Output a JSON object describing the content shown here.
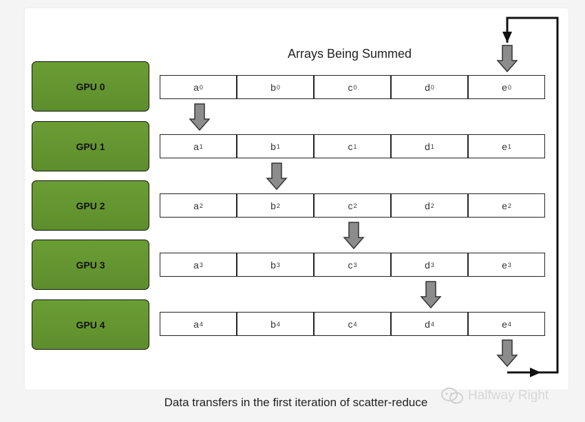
{
  "diagram": {
    "title": "Arrays Being Summed",
    "gpus": [
      "GPU 0",
      "GPU 1",
      "GPU 2",
      "GPU 3",
      "GPU 4"
    ],
    "rows": [
      [
        [
          "a",
          "0"
        ],
        [
          "b",
          "0"
        ],
        [
          "c",
          "0"
        ],
        [
          "d",
          "0"
        ],
        [
          "e",
          "0"
        ]
      ],
      [
        [
          "a",
          "1"
        ],
        [
          "b",
          "1"
        ],
        [
          "c",
          "1"
        ],
        [
          "d",
          "1"
        ],
        [
          "e",
          "1"
        ]
      ],
      [
        [
          "a",
          "2"
        ],
        [
          "b",
          "2"
        ],
        [
          "c",
          "2"
        ],
        [
          "d",
          "2"
        ],
        [
          "e",
          "2"
        ]
      ],
      [
        [
          "a",
          "3"
        ],
        [
          "b",
          "3"
        ],
        [
          "c",
          "3"
        ],
        [
          "d",
          "3"
        ],
        [
          "e",
          "3"
        ]
      ],
      [
        [
          "a",
          "4"
        ],
        [
          "b",
          "4"
        ],
        [
          "c",
          "4"
        ],
        [
          "d",
          "4"
        ],
        [
          "e",
          "4"
        ]
      ]
    ],
    "transfers": [
      {
        "from_gpu": 0,
        "to_gpu": 1,
        "chunk": "a"
      },
      {
        "from_gpu": 1,
        "to_gpu": 2,
        "chunk": "b"
      },
      {
        "from_gpu": 2,
        "to_gpu": 3,
        "chunk": "c"
      },
      {
        "from_gpu": 3,
        "to_gpu": 4,
        "chunk": "d"
      },
      {
        "from_gpu": 4,
        "to_gpu": 0,
        "chunk": "e"
      }
    ]
  },
  "caption": "Data transfers in the first iteration of scatter-reduce",
  "watermark": "Halfway Right",
  "colors": {
    "gpu_fill": "#5d8e2c",
    "arrow_fill": "#8c8c8c"
  }
}
